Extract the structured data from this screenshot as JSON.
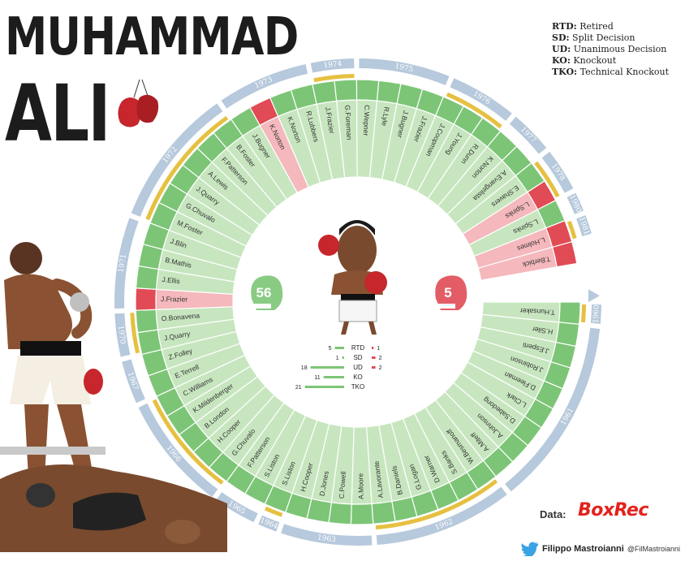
{
  "title": {
    "line1": "MUHAMMAD",
    "line2": "ALI"
  },
  "key": [
    {
      "abbr": "RTD:",
      "text": "Retired"
    },
    {
      "abbr": "SD:",
      "text": "Split Decision"
    },
    {
      "abbr": "UD:",
      "text": "Unanimous Decision"
    },
    {
      "abbr": "KO:",
      "text": "Knockout"
    },
    {
      "abbr": "TKO:",
      "text": "Technical Knockout"
    }
  ],
  "source": {
    "label": "Data:",
    "name": "BoxRec"
  },
  "credit": {
    "name": "Filippo Mastroianni",
    "handle": "@FilMastroianni"
  },
  "colors": {
    "win": "#7cc576",
    "win_light": "#c7e6bf",
    "loss": "#e04b55",
    "loss_light": "#f4b8bd",
    "years": "#b7c9dc",
    "year_text": "#ffffff",
    "tick": "#e6c040"
  },
  "chart_data": {
    "type": "radial",
    "totals": {
      "wins": "56",
      "losses": "5"
    },
    "method_breakdown": [
      {
        "method": "RTD",
        "wins": 5,
        "losses": 1
      },
      {
        "method": "SD",
        "wins": 1,
        "losses": 2
      },
      {
        "method": "UD",
        "wins": 18,
        "losses": 2
      },
      {
        "method": "KO",
        "wins": 11,
        "losses": 0
      },
      {
        "method": "TKO",
        "wins": 21,
        "losses": 0
      }
    ],
    "fights": [
      {
        "opponent": "T.Hunsaker",
        "result": "W"
      },
      {
        "opponent": "H.Siler",
        "result": "W"
      },
      {
        "opponent": "J.Esperti",
        "result": "W"
      },
      {
        "opponent": "J.Robinson",
        "result": "W"
      },
      {
        "opponent": "D.Fleeman",
        "result": "W"
      },
      {
        "opponent": "L.Clark",
        "result": "W"
      },
      {
        "opponent": "D.Sabedong",
        "result": "W"
      },
      {
        "opponent": "A.Johnson",
        "result": "W"
      },
      {
        "opponent": "A.Miteff",
        "result": "W"
      },
      {
        "opponent": "W.Besmanoff",
        "result": "W"
      },
      {
        "opponent": "S.Banks",
        "result": "W"
      },
      {
        "opponent": "D.Warner",
        "result": "W"
      },
      {
        "opponent": "G.Logan",
        "result": "W"
      },
      {
        "opponent": "B.Daniels",
        "result": "W"
      },
      {
        "opponent": "A.Lavorante",
        "result": "W"
      },
      {
        "opponent": "A.Moore",
        "result": "W"
      },
      {
        "opponent": "C.Powell",
        "result": "W"
      },
      {
        "opponent": "D.Jones",
        "result": "W"
      },
      {
        "opponent": "H.Cooper",
        "result": "W"
      },
      {
        "opponent": "S.Liston",
        "result": "W"
      },
      {
        "opponent": "S.Liston",
        "result": "W"
      },
      {
        "opponent": "F.Patterson",
        "result": "W"
      },
      {
        "opponent": "G.Chuvalo",
        "result": "W"
      },
      {
        "opponent": "H.Cooper",
        "result": "W"
      },
      {
        "opponent": "B.London",
        "result": "W"
      },
      {
        "opponent": "K.Mildenberger",
        "result": "W"
      },
      {
        "opponent": "C.Williams",
        "result": "W"
      },
      {
        "opponent": "E.Terrell",
        "result": "W"
      },
      {
        "opponent": "Z.Folley",
        "result": "W"
      },
      {
        "opponent": "J.Quarry",
        "result": "W"
      },
      {
        "opponent": "O.Bonavena",
        "result": "W"
      },
      {
        "opponent": "J.Frazier",
        "result": "L"
      },
      {
        "opponent": "J.Ellis",
        "result": "W"
      },
      {
        "opponent": "B.Mathis",
        "result": "W"
      },
      {
        "opponent": "J.Blin",
        "result": "W"
      },
      {
        "opponent": "M.Foster",
        "result": "W"
      },
      {
        "opponent": "G.Chuvalo",
        "result": "W"
      },
      {
        "opponent": "J.Quarry",
        "result": "W"
      },
      {
        "opponent": "A.Lewis",
        "result": "W"
      },
      {
        "opponent": "F.Patterson",
        "result": "W"
      },
      {
        "opponent": "B.Foster",
        "result": "W"
      },
      {
        "opponent": "J.Bugner",
        "result": "W"
      },
      {
        "opponent": "K.Norton",
        "result": "L"
      },
      {
        "opponent": "K.Norton",
        "result": "W"
      },
      {
        "opponent": "R.Lubbers",
        "result": "W"
      },
      {
        "opponent": "J.Frazier",
        "result": "W"
      },
      {
        "opponent": "G.Foreman",
        "result": "W"
      },
      {
        "opponent": "C.Wepner",
        "result": "W"
      },
      {
        "opponent": "R.Lyle",
        "result": "W"
      },
      {
        "opponent": "J.Bugner",
        "result": "W"
      },
      {
        "opponent": "J.Frazier",
        "result": "W"
      },
      {
        "opponent": "J.Coopman",
        "result": "W"
      },
      {
        "opponent": "J.Young",
        "result": "W"
      },
      {
        "opponent": "R.Dunn",
        "result": "W"
      },
      {
        "opponent": "K.Norton",
        "result": "W"
      },
      {
        "opponent": "A.Evangelista",
        "result": "W"
      },
      {
        "opponent": "E.Shavers",
        "result": "W"
      },
      {
        "opponent": "L.Spinks",
        "result": "L"
      },
      {
        "opponent": "L.Spinks",
        "result": "W"
      },
      {
        "opponent": "L.Holmes",
        "result": "L"
      },
      {
        "opponent": "T.Berbick",
        "result": "L"
      }
    ],
    "years": [
      {
        "year": "1960",
        "start": 0,
        "end": 1
      },
      {
        "year": "1961",
        "start": 1,
        "end": 9
      },
      {
        "year": "1962",
        "start": 9,
        "end": 15
      },
      {
        "year": "1963",
        "start": 15,
        "end": 19
      },
      {
        "year": "1964",
        "start": 19,
        "end": 20
      },
      {
        "year": "1965",
        "start": 20,
        "end": 22
      },
      {
        "year": "1966",
        "start": 22,
        "end": 27
      },
      {
        "year": "1967",
        "start": 27,
        "end": 29
      },
      {
        "year": "1970",
        "start": 29,
        "end": 31
      },
      {
        "year": "1971",
        "start": 31,
        "end": 35
      },
      {
        "year": "1972",
        "start": 35,
        "end": 41
      },
      {
        "year": "1973",
        "start": 41,
        "end": 45
      },
      {
        "year": "1974",
        "start": 45,
        "end": 47
      },
      {
        "year": "1975",
        "start": 47,
        "end": 51
      },
      {
        "year": "1976",
        "start": 51,
        "end": 54
      },
      {
        "year": "1977",
        "start": 54,
        "end": 56
      },
      {
        "year": "1978",
        "start": 56,
        "end": 58
      },
      {
        "year": "1980",
        "start": 58,
        "end": 59
      },
      {
        "year": "1981",
        "start": 59,
        "end": 60
      }
    ]
  }
}
